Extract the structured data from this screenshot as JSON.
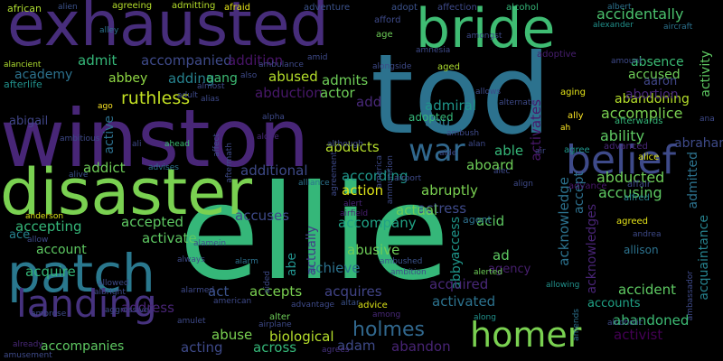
{
  "word_cloud": {
    "background": "#000000",
    "palette": [
      "#440154",
      "#472d7b",
      "#3b528b",
      "#2c728e",
      "#21918c",
      "#28ae80",
      "#5ec962",
      "#addc30",
      "#fde725"
    ],
    "words": [
      {
        "text": "ellie",
        "color": "#35b779"
      },
      {
        "text": "tod",
        "color": "#2c728e"
      },
      {
        "text": "winston",
        "color": "#482677"
      },
      {
        "text": "exhausted",
        "color": "#472d7b"
      },
      {
        "text": "disaster",
        "color": "#7ad151"
      },
      {
        "text": "bride",
        "color": "#3fbc73"
      },
      {
        "text": "patch",
        "color": "#2a788e"
      },
      {
        "text": "landing",
        "color": "#46327e"
      },
      {
        "text": "belief",
        "color": "#3e4a89"
      },
      {
        "text": "homer",
        "color": "#7ad151"
      },
      {
        "text": "war",
        "color": "#31688e"
      },
      {
        "text": "holmes",
        "color": "#31688e"
      },
      {
        "text": "ruthless",
        "color": "#c2df23"
      },
      {
        "text": "abandoning",
        "color": "#b5de2b"
      },
      {
        "text": "accidentally",
        "color": "#4ac16d"
      },
      {
        "text": "accomplice",
        "color": "#7ad151"
      },
      {
        "text": "ability",
        "color": "#5ec962"
      },
      {
        "text": "abortion",
        "color": "#482878"
      },
      {
        "text": "accused",
        "color": "#6ece58"
      },
      {
        "text": "absence",
        "color": "#3bbb75"
      },
      {
        "text": "aaron",
        "color": "#404688"
      },
      {
        "text": "abduction",
        "color": "#48186a"
      },
      {
        "text": "abducted",
        "color": "#6ece58"
      },
      {
        "text": "accusing",
        "color": "#5ec962"
      },
      {
        "text": "abraham",
        "color": "#3e4a89"
      },
      {
        "text": "admitted",
        "color": "#2c728e"
      },
      {
        "text": "acquaintance",
        "color": "#26828e"
      },
      {
        "text": "acknowledge",
        "color": "#2c728e"
      },
      {
        "text": "acknowledges",
        "color": "#482475"
      },
      {
        "text": "accept",
        "color": "#2d708e"
      },
      {
        "text": "access",
        "color": "#1f968b"
      },
      {
        "text": "abused",
        "color": "#b5de2b"
      },
      {
        "text": "abuse",
        "color": "#7ad151"
      },
      {
        "text": "abusive",
        "color": "#6ece58"
      },
      {
        "text": "accompanies",
        "color": "#5ec962"
      },
      {
        "text": "accompanied",
        "color": "#3e4a89"
      },
      {
        "text": "accompany",
        "color": "#20a386"
      },
      {
        "text": "accepting",
        "color": "#35b779"
      },
      {
        "text": "accepted",
        "color": "#5ec962"
      },
      {
        "text": "accepts",
        "color": "#7ad151"
      },
      {
        "text": "accuses",
        "color": "#3e4a89"
      },
      {
        "text": "account",
        "color": "#5ec962"
      },
      {
        "text": "accident",
        "color": "#5ec962"
      },
      {
        "text": "accounts",
        "color": "#20a386"
      },
      {
        "text": "academy",
        "color": "#2c728e"
      },
      {
        "text": "abigail",
        "color": "#404688"
      },
      {
        "text": "abbey",
        "color": "#8fd744"
      },
      {
        "text": "abby",
        "color": "#1f968b"
      },
      {
        "text": "abe",
        "color": "#21918c"
      },
      {
        "text": "abu",
        "color": "#2c728e"
      },
      {
        "text": "able",
        "color": "#35b779"
      },
      {
        "text": "aboard",
        "color": "#6ece58"
      },
      {
        "text": "abruptly",
        "color": "#7ad151"
      },
      {
        "text": "abandoned",
        "color": "#3dbc74"
      },
      {
        "text": "abandon",
        "color": "#482475"
      },
      {
        "text": "abducts",
        "color": "#b5de2b"
      },
      {
        "text": "according",
        "color": "#1f968b"
      },
      {
        "text": "achieve",
        "color": "#2c728e"
      },
      {
        "text": "acid",
        "color": "#5ec962"
      },
      {
        "text": "acquire",
        "color": "#35b779"
      },
      {
        "text": "acquired",
        "color": "#482878"
      },
      {
        "text": "acquires",
        "color": "#414487"
      },
      {
        "text": "across",
        "color": "#35b779"
      },
      {
        "text": "act",
        "color": "#3b528b"
      },
      {
        "text": "acting",
        "color": "#3e4a89"
      },
      {
        "text": "action",
        "color": "#dde318"
      },
      {
        "text": "activate",
        "color": "#5ec962"
      },
      {
        "text": "activated",
        "color": "#2c728e"
      },
      {
        "text": "activates",
        "color": "#48186a"
      },
      {
        "text": "active",
        "color": "#2d708e"
      },
      {
        "text": "activist",
        "color": "#440154"
      },
      {
        "text": "activity",
        "color": "#5ec962"
      },
      {
        "text": "actor",
        "color": "#6ece58"
      },
      {
        "text": "actress",
        "color": "#3e4a89"
      },
      {
        "text": "actual",
        "color": "#6ece58"
      },
      {
        "text": "actually",
        "color": "#433e85"
      },
      {
        "text": "ad",
        "color": "#5ec962"
      },
      {
        "text": "adam",
        "color": "#3e4a89"
      },
      {
        "text": "add",
        "color": "#482878"
      },
      {
        "text": "adding",
        "color": "#26828e"
      },
      {
        "text": "addict",
        "color": "#6ece58"
      },
      {
        "text": "addition",
        "color": "#481467"
      },
      {
        "text": "additional",
        "color": "#3e4a89"
      },
      {
        "text": "address",
        "color": "#482475"
      },
      {
        "text": "admiral",
        "color": "#1f968b"
      },
      {
        "text": "admit",
        "color": "#35b779"
      },
      {
        "text": "admits",
        "color": "#6ece58"
      },
      {
        "text": "adopted",
        "color": "#35b779"
      },
      {
        "text": "agency",
        "color": "#481f70"
      },
      {
        "text": "biological",
        "color": "#b5de2b"
      },
      {
        "text": "aang",
        "color": "#3dbc74"
      },
      {
        "text": "ace",
        "color": "#26828e"
      },
      {
        "text": "ally",
        "color": "#fde725"
      },
      {
        "text": "afterwards",
        "color": "#35b779"
      },
      {
        "text": "african",
        "color": "#addc30"
      },
      {
        "text": "afterlife",
        "color": "#21918c"
      },
      {
        "text": "agreeing",
        "color": "#b5de2b"
      },
      {
        "text": "admitting",
        "color": "#b5de2b"
      },
      {
        "text": "afraid",
        "color": "#e5e419"
      },
      {
        "text": "adventure",
        "color": "#3b528b"
      },
      {
        "text": "adopt",
        "color": "#3b528b"
      },
      {
        "text": "affection",
        "color": "#3e4a89"
      },
      {
        "text": "afford",
        "color": "#3e4a89"
      },
      {
        "text": "age",
        "color": "#6ece58"
      },
      {
        "text": "alcohol",
        "color": "#35b779"
      },
      {
        "text": "albert",
        "color": "#2c728e"
      },
      {
        "text": "alexander",
        "color": "#21918c"
      },
      {
        "text": "aircraft",
        "color": "#2c728e"
      },
      {
        "text": "alien",
        "color": "#3b528b"
      },
      {
        "text": "adoptive",
        "color": "#481f70"
      },
      {
        "text": "aged",
        "color": "#addc30"
      },
      {
        "text": "aging",
        "color": "#e5e419"
      },
      {
        "text": "advanced",
        "color": "#482878"
      },
      {
        "text": "agree",
        "color": "#1f968b"
      },
      {
        "text": "alice",
        "color": "#dde318"
      },
      {
        "text": "advance",
        "color": "#48186a"
      },
      {
        "text": "affair",
        "color": "#3e4a89"
      },
      {
        "text": "alfred",
        "color": "#26828e"
      },
      {
        "text": "agreed",
        "color": "#e5e419"
      },
      {
        "text": "allison",
        "color": "#2c728e"
      },
      {
        "text": "agent",
        "color": "#2d708e"
      },
      {
        "text": "alerted",
        "color": "#6ece58"
      },
      {
        "text": "along",
        "color": "#21918c"
      },
      {
        "text": "advice",
        "color": "#dde318"
      },
      {
        "text": "alter",
        "color": "#6ece58"
      },
      {
        "text": "agrees",
        "color": "#46327e"
      },
      {
        "text": "alley",
        "color": "#2c728e"
      },
      {
        "text": "alancient",
        "color": "#addc30"
      },
      {
        "text": "alone",
        "color": "#482878"
      },
      {
        "text": "also",
        "color": "#3e4a89"
      },
      {
        "text": "ali",
        "color": "#3e4a89"
      },
      {
        "text": "ahead",
        "color": "#3dbc74"
      },
      {
        "text": "advises",
        "color": "#2c728e"
      },
      {
        "text": "alive",
        "color": "#3b528b"
      },
      {
        "text": "alliance",
        "color": "#2c728e"
      },
      {
        "text": "airport",
        "color": "#3e4a89"
      },
      {
        "text": "airfield",
        "color": "#481f70"
      },
      {
        "text": "alert",
        "color": "#482475"
      },
      {
        "text": "allow",
        "color": "#3e4a89"
      },
      {
        "text": "allowing",
        "color": "#21918c"
      },
      {
        "text": "alarm",
        "color": "#2c728e"
      },
      {
        "text": "ambushed",
        "color": "#3b528b"
      },
      {
        "text": "altar",
        "color": "#3b528b"
      },
      {
        "text": "among",
        "color": "#482878"
      },
      {
        "text": "amusement",
        "color": "#3e4a89"
      },
      {
        "text": "ambrose",
        "color": "#3e4a89"
      },
      {
        "text": "already",
        "color": "#482878"
      },
      {
        "text": "anderson",
        "color": "#dde318"
      },
      {
        "text": "andrea",
        "color": "#3e4a89"
      },
      {
        "text": "amends",
        "color": "#2c728e"
      },
      {
        "text": "amongst",
        "color": "#3e4a89"
      },
      {
        "text": "ambush",
        "color": "#3e4a89"
      },
      {
        "text": "alan",
        "color": "#3e4a89"
      },
      {
        "text": "ambassador",
        "color": "#3e4a89"
      },
      {
        "text": "ana",
        "color": "#3e4a89"
      },
      {
        "text": "amulet",
        "color": "#3e4a89"
      },
      {
        "text": "amount",
        "color": "#3e4a89"
      },
      {
        "text": "alarmed",
        "color": "#3e4a89"
      },
      {
        "text": "alongside",
        "color": "#3e4a89"
      },
      {
        "text": "alcoholic",
        "color": "#3e4a89"
      },
      {
        "text": "allowed",
        "color": "#3e4a89"
      },
      {
        "text": "albright",
        "color": "#3e4a89"
      },
      {
        "text": "aggressive",
        "color": "#3e4a89"
      },
      {
        "text": "alternate",
        "color": "#3e4a89"
      },
      {
        "text": "air",
        "color": "#3e4a89"
      },
      {
        "text": "ah",
        "color": "#fde725"
      },
      {
        "text": "ago",
        "color": "#fde725"
      },
      {
        "text": "alias",
        "color": "#3e4a89"
      },
      {
        "text": "almost",
        "color": "#3e4a89"
      },
      {
        "text": "adult",
        "color": "#3e4a89"
      },
      {
        "text": "amid",
        "color": "#3e4a89"
      },
      {
        "text": "ambulance",
        "color": "#3e4a89"
      },
      {
        "text": "amnesia",
        "color": "#3e4a89"
      },
      {
        "text": "allows",
        "color": "#3e4a89"
      },
      {
        "text": "alpha",
        "color": "#3e4a89"
      },
      {
        "text": "affect",
        "color": "#3e4a89"
      },
      {
        "text": "aftermath",
        "color": "#3e4a89"
      },
      {
        "text": "agreement",
        "color": "#3e4a89"
      },
      {
        "text": "although",
        "color": "#3e4a89"
      },
      {
        "text": "ambitious",
        "color": "#3e4a89"
      },
      {
        "text": "aide",
        "color": "#3e4a89"
      },
      {
        "text": "alec",
        "color": "#3e4a89"
      },
      {
        "text": "align",
        "color": "#3e4a89"
      },
      {
        "text": "alamein",
        "color": "#3e4a89"
      },
      {
        "text": "always",
        "color": "#3e4a89"
      },
      {
        "text": "aided",
        "color": "#3e4a89"
      },
      {
        "text": "american",
        "color": "#3e4a89"
      },
      {
        "text": "advantage",
        "color": "#3e4a89"
      },
      {
        "text": "ambition",
        "color": "#3e4a89"
      },
      {
        "text": "airplane",
        "color": "#3e4a89"
      },
      {
        "text": "ammunition",
        "color": "#3e4a89"
      },
      {
        "text": "america",
        "color": "#3e4a89"
      },
      {
        "text": "allie",
        "color": "#3e4a89"
      },
      {
        "text": "alex",
        "color": "#3e4a89"
      }
    ]
  }
}
